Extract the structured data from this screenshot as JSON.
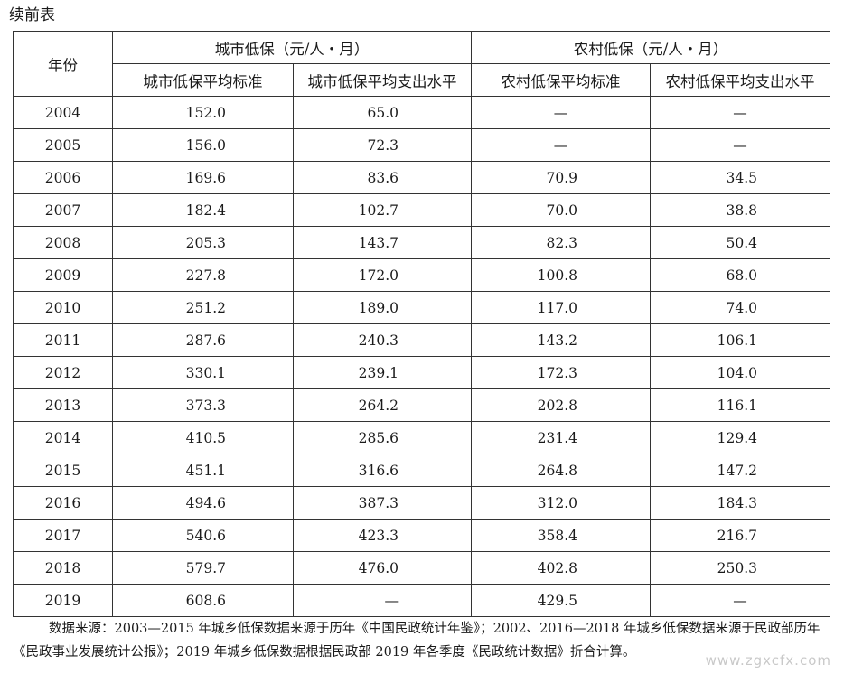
{
  "caption": "续前表",
  "header": {
    "year_label": "年份",
    "urban_group": "城市低保（元/人・月）",
    "rural_group": "农村低保（元/人・月）",
    "cols": [
      "城市低保平均标准",
      "城市低保平均支出水平",
      "农村低保平均标准",
      "农村低保平均支出水平"
    ]
  },
  "rows": [
    {
      "year": "2004",
      "v": [
        "152.0",
        "65.0",
        "—",
        "—"
      ]
    },
    {
      "year": "2005",
      "v": [
        "156.0",
        "72.3",
        "—",
        "—"
      ]
    },
    {
      "year": "2006",
      "v": [
        "169.6",
        "83.6",
        "70.9",
        "34.5"
      ]
    },
    {
      "year": "2007",
      "v": [
        "182.4",
        "102.7",
        "70.0",
        "38.8"
      ]
    },
    {
      "year": "2008",
      "v": [
        "205.3",
        "143.7",
        "82.3",
        "50.4"
      ]
    },
    {
      "year": "2009",
      "v": [
        "227.8",
        "172.0",
        "100.8",
        "68.0"
      ]
    },
    {
      "year": "2010",
      "v": [
        "251.2",
        "189.0",
        "117.0",
        "74.0"
      ]
    },
    {
      "year": "2011",
      "v": [
        "287.6",
        "240.3",
        "143.2",
        "106.1"
      ]
    },
    {
      "year": "2012",
      "v": [
        "330.1",
        "239.1",
        "172.3",
        "104.0"
      ]
    },
    {
      "year": "2013",
      "v": [
        "373.3",
        "264.2",
        "202.8",
        "116.1"
      ]
    },
    {
      "year": "2014",
      "v": [
        "410.5",
        "285.6",
        "231.4",
        "129.4"
      ]
    },
    {
      "year": "2015",
      "v": [
        "451.1",
        "316.6",
        "264.8",
        "147.2"
      ]
    },
    {
      "year": "2016",
      "v": [
        "494.6",
        "387.3",
        "312.0",
        "184.3"
      ]
    },
    {
      "year": "2017",
      "v": [
        "540.6",
        "423.3",
        "358.4",
        "216.7"
      ]
    },
    {
      "year": "2018",
      "v": [
        "579.7",
        "476.0",
        "402.8",
        "250.3"
      ]
    },
    {
      "year": "2019",
      "v": [
        "608.6",
        "—",
        "429.5",
        "—"
      ]
    }
  ],
  "note": "数据来源：2003—2015 年城乡低保数据来源于历年《中国民政统计年鉴》；2002、2016—2018 年城乡低保数据来源于民政部历年《民政事业发展统计公报》；2019 年城乡低保数据根据民政部 2019 年各季度《民政统计数据》折合计算。",
  "watermark": "www.zgxcfx.com"
}
